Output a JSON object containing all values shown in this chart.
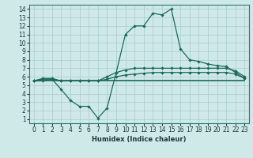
{
  "xlabel": "Humidex (Indice chaleur)",
  "bg_color": "#cfe8e8",
  "grid_color": "#a8cccc",
  "line_color": "#1a6b5a",
  "xlim": [
    -0.5,
    23.5
  ],
  "ylim": [
    0.5,
    14.5
  ],
  "xticks": [
    0,
    1,
    2,
    3,
    4,
    5,
    6,
    7,
    8,
    9,
    10,
    11,
    12,
    13,
    14,
    15,
    16,
    17,
    18,
    19,
    20,
    21,
    22,
    23
  ],
  "yticks": [
    1,
    2,
    3,
    4,
    5,
    6,
    7,
    8,
    9,
    10,
    11,
    12,
    13,
    14
  ],
  "line1_x": [
    0,
    1,
    2,
    3,
    4,
    5,
    6,
    7,
    8,
    9,
    10,
    11,
    12,
    13,
    14,
    15,
    16,
    17,
    18,
    19,
    20,
    21,
    22,
    23
  ],
  "line1_y": [
    5.5,
    5.5,
    5.5,
    5.5,
    5.5,
    5.5,
    5.5,
    5.5,
    5.5,
    5.5,
    5.5,
    5.5,
    5.5,
    5.5,
    5.5,
    5.5,
    5.5,
    5.5,
    5.5,
    5.5,
    5.5,
    5.5,
    5.5,
    5.5
  ],
  "line2_x": [
    0,
    1,
    2,
    3,
    4,
    5,
    6,
    7,
    8,
    9,
    10,
    11,
    12,
    13,
    14,
    15,
    16,
    17,
    18,
    19,
    20,
    21,
    22,
    23
  ],
  "line2_y": [
    5.5,
    5.7,
    5.7,
    5.5,
    5.5,
    5.5,
    5.5,
    5.5,
    5.7,
    6.0,
    6.2,
    6.3,
    6.4,
    6.5,
    6.5,
    6.5,
    6.5,
    6.5,
    6.5,
    6.5,
    6.5,
    6.5,
    6.3,
    5.8
  ],
  "line3_x": [
    0,
    1,
    2,
    3,
    4,
    5,
    6,
    7,
    8,
    9,
    10,
    11,
    12,
    13,
    14,
    15,
    16,
    17,
    18,
    19,
    20,
    21,
    22,
    23
  ],
  "line3_y": [
    5.5,
    5.8,
    5.8,
    5.5,
    5.5,
    5.5,
    5.5,
    5.5,
    6.0,
    6.5,
    6.8,
    7.0,
    7.0,
    7.0,
    7.0,
    7.0,
    7.0,
    7.0,
    7.0,
    7.0,
    7.0,
    7.0,
    6.7,
    6.0
  ],
  "line4_x": [
    0,
    1,
    2,
    3,
    4,
    5,
    6,
    7,
    8,
    9,
    10,
    11,
    12,
    13,
    14,
    15,
    16,
    17,
    18,
    19,
    20,
    21,
    22,
    23
  ],
  "line4_y": [
    5.5,
    5.5,
    5.7,
    4.5,
    3.2,
    2.5,
    2.5,
    1.1,
    2.3,
    6.5,
    11.0,
    12.0,
    12.0,
    13.5,
    13.3,
    14.0,
    9.3,
    8.0,
    7.8,
    7.5,
    7.3,
    7.2,
    6.5,
    5.8
  ]
}
